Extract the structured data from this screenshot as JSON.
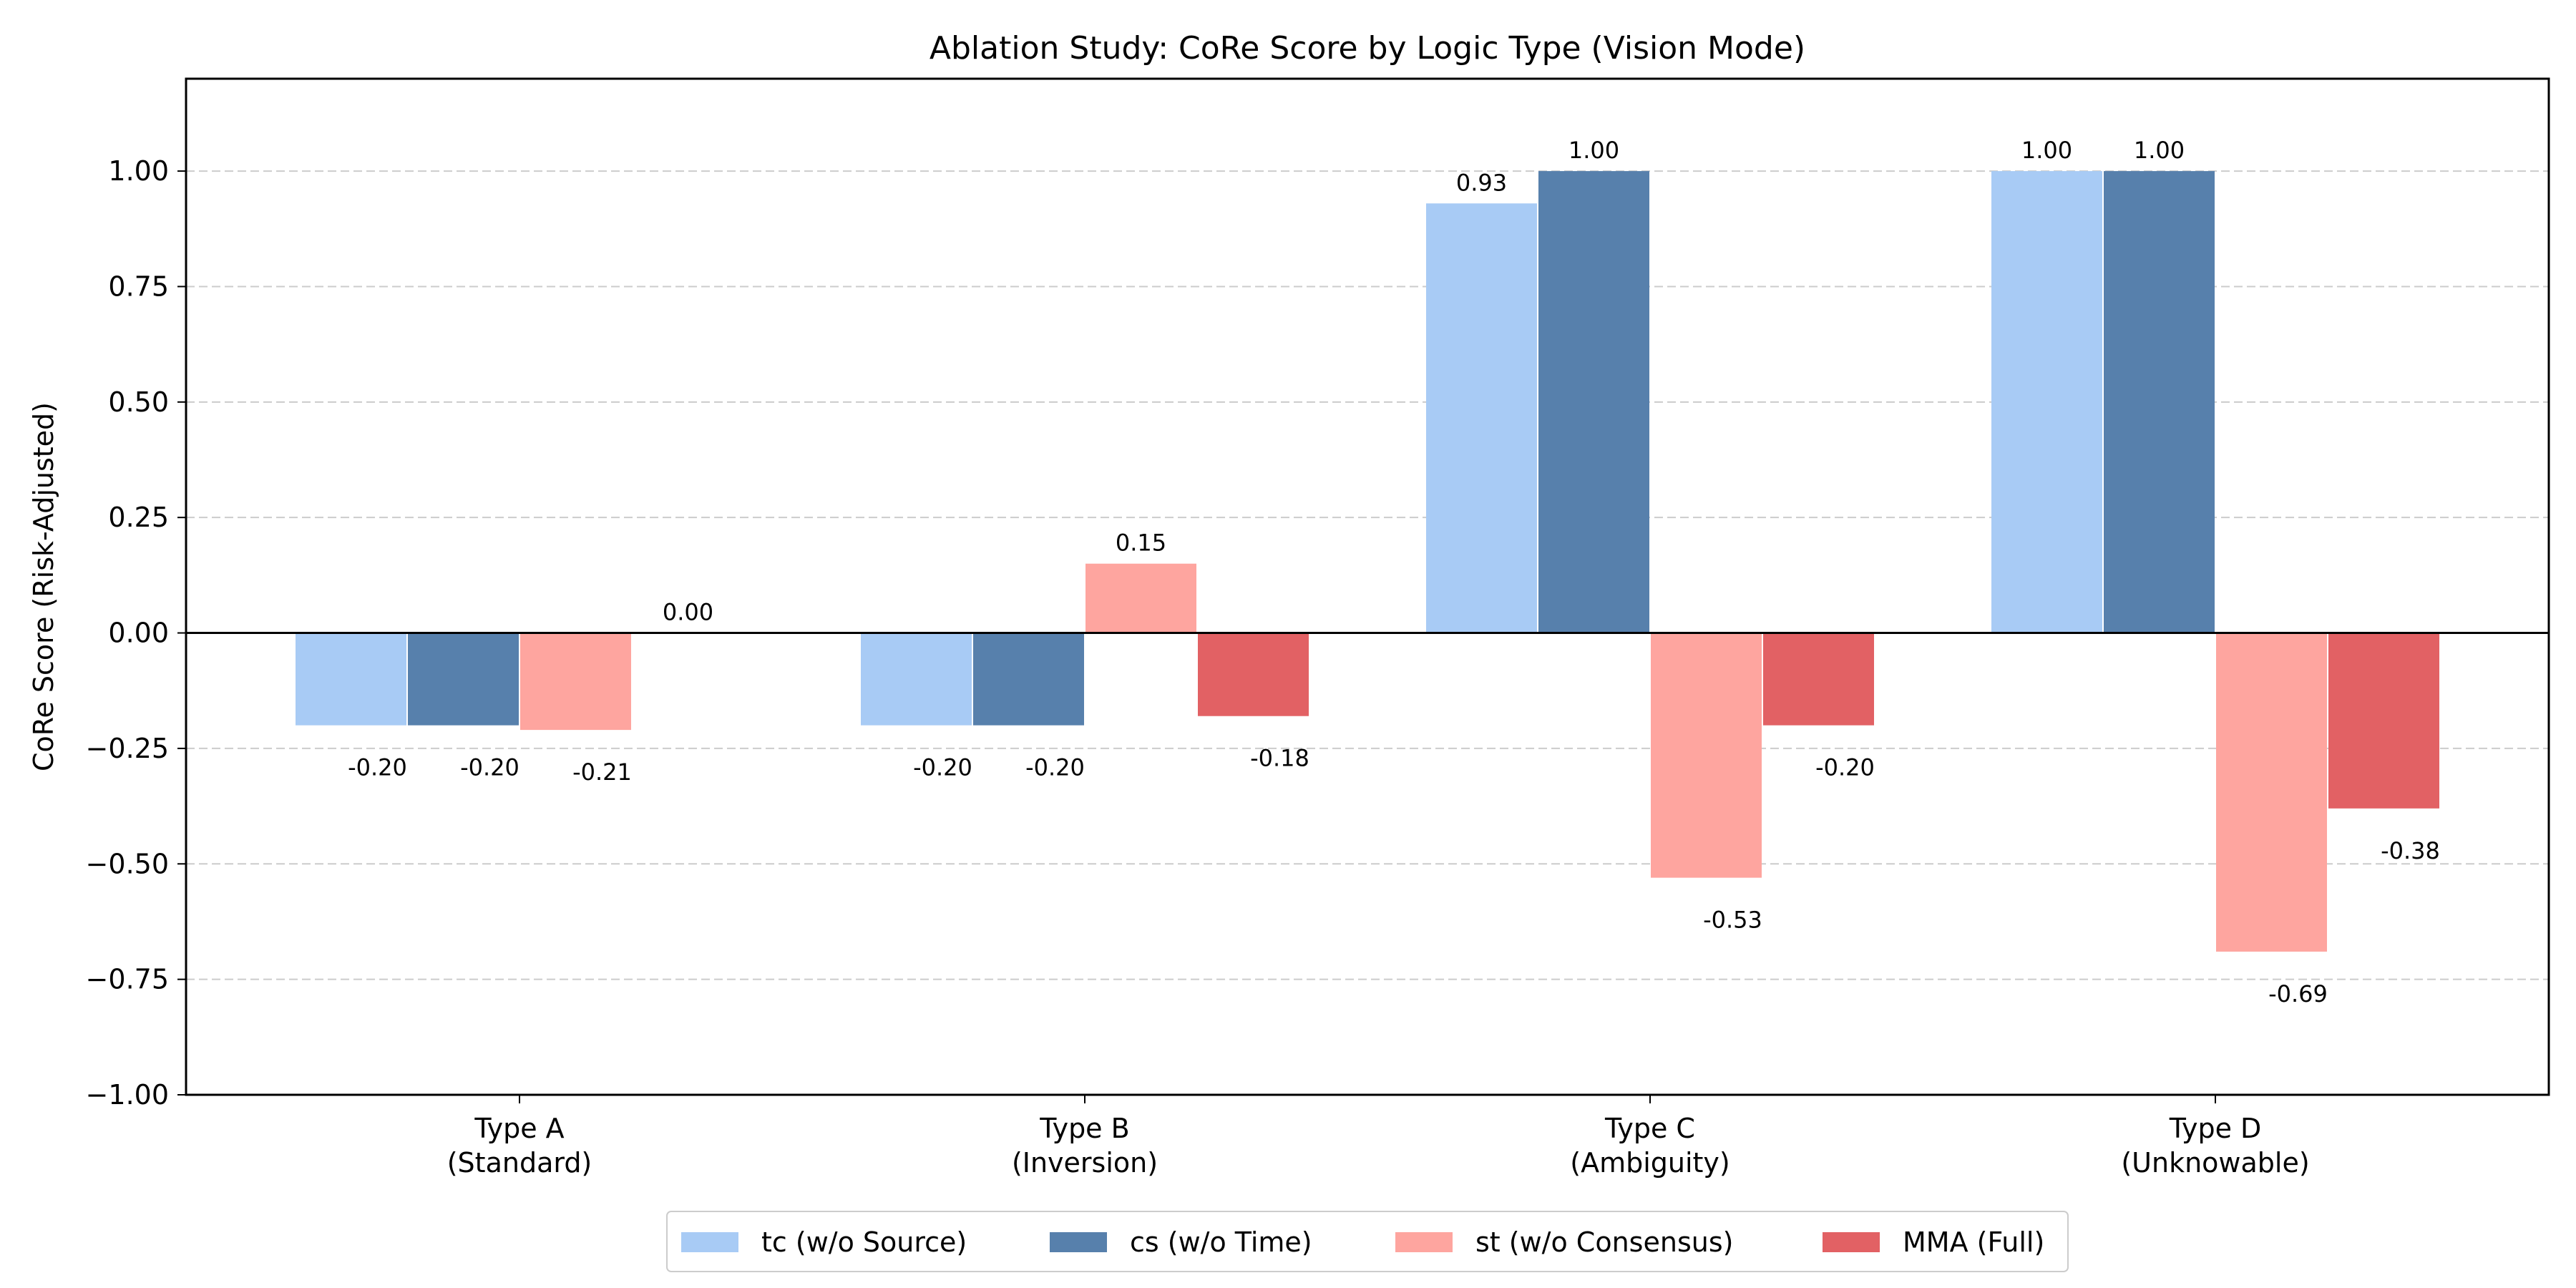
{
  "chart_data": {
    "type": "bar",
    "title": "Ablation Study: CoRe Score by Logic Type (Vision Mode)",
    "xlabel": "",
    "ylabel": "CoRe Score (Risk-Adjusted)",
    "ylim": [
      -1.0,
      1.2
    ],
    "yticks": [
      1.0,
      0.75,
      0.5,
      0.25,
      0.0,
      -0.25,
      -0.5,
      -0.75,
      -1.0
    ],
    "ytick_labels": [
      "1.00",
      "0.75",
      "0.50",
      "0.25",
      "0.00",
      "−0.25",
      "−0.50",
      "−0.75",
      "−1.00"
    ],
    "grid": "y-dashed",
    "legend_position": "bottom-center",
    "categories": [
      [
        "Type A",
        "(Standard)"
      ],
      [
        "Type B",
        "(Inversion)"
      ],
      [
        "Type C",
        "(Ambiguity)"
      ],
      [
        "Type D",
        "(Unknowable)"
      ]
    ],
    "series": [
      {
        "name": "tc (w/o Source)",
        "color": "#a8cbf5",
        "values": [
          -0.2,
          -0.2,
          0.93,
          1.0
        ],
        "labels": [
          "-0.20",
          "-0.20",
          "0.93",
          "1.00"
        ]
      },
      {
        "name": "cs (w/o Time)",
        "color": "#5780ac",
        "values": [
          -0.2,
          -0.2,
          1.0,
          1.0
        ],
        "labels": [
          "-0.20",
          "-0.20",
          "1.00",
          "1.00"
        ]
      },
      {
        "name": "st (w/o Consensus)",
        "color": "#fea59f",
        "values": [
          -0.21,
          0.15,
          -0.53,
          -0.69
        ],
        "labels": [
          "-0.21",
          "0.15",
          "-0.53",
          "-0.69"
        ]
      },
      {
        "name": "MMA (Full)",
        "color": "#e26164",
        "values": [
          0.0,
          -0.18,
          -0.2,
          -0.38
        ],
        "labels": [
          "0.00",
          "-0.18",
          "-0.20",
          "-0.38"
        ]
      }
    ]
  }
}
